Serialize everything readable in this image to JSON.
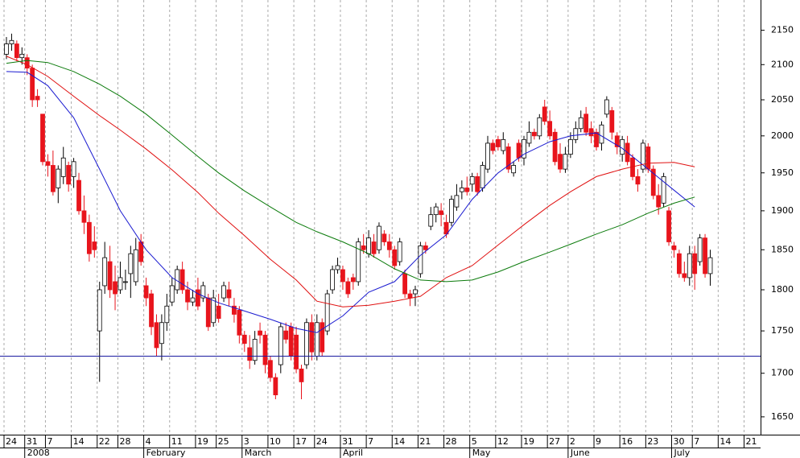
{
  "chart_data": {
    "type": "candlestick",
    "log_scale": true,
    "ylim": [
      1630,
      2195
    ],
    "yticks": [
      1650,
      1700,
      1750,
      1800,
      1850,
      1900,
      1950,
      2000,
      2050,
      2100,
      2150
    ],
    "vertical_grid": true,
    "up_color": "#ffffff",
    "down_color": "#e8141c",
    "reference_line": 1720,
    "reference_color": "#1a1aa0",
    "categories": [
      "24",
      "31",
      "7",
      "14",
      "22",
      "28",
      "4",
      "11",
      "19",
      "25",
      "3",
      "10",
      "17",
      "24",
      "31",
      "7",
      "14",
      "21",
      "28",
      "5",
      "12",
      "19",
      "27",
      "2",
      "9",
      "16",
      "23",
      "30",
      "7",
      "14",
      "21"
    ],
    "months": [
      null,
      "2008",
      null,
      null,
      null,
      null,
      "February",
      null,
      null,
      null,
      "March",
      null,
      null,
      null,
      "April",
      null,
      null,
      null,
      null,
      "May",
      null,
      null,
      null,
      "June",
      null,
      null,
      null,
      "July",
      null,
      null,
      null
    ],
    "candles": [
      [
        [
          2115,
          2130,
          2140,
          2108
        ],
        [
          2130,
          2135,
          2145,
          2120
        ],
        [
          2130,
          2110,
          2135,
          2105
        ],
        [
          2110,
          2115,
          2125,
          2100
        ]
      ],
      [
        [
          2110,
          2095,
          2115,
          2085
        ],
        [
          2095,
          2050,
          2100,
          2040
        ],
        [
          2055,
          2050,
          2065,
          2040
        ],
        [
          2030,
          1965,
          2030,
          1960
        ]
      ],
      [
        [
          1965,
          1960,
          1975,
          1945
        ],
        [
          1960,
          1925,
          1980,
          1920
        ],
        [
          1930,
          1955,
          1960,
          1910
        ],
        [
          1945,
          1970,
          1985,
          1935
        ],
        [
          1960,
          1935,
          1965,
          1925
        ]
      ],
      [
        [
          1945,
          1965,
          1970,
          1930
        ],
        [
          1940,
          1900,
          1950,
          1895
        ],
        [
          1900,
          1885,
          1920,
          1870
        ],
        [
          1885,
          1845,
          1895,
          1835
        ],
        [
          1860,
          1850,
          1880,
          1840
        ]
      ],
      [
        [
          1750,
          1800,
          1810,
          1690
        ],
        [
          1805,
          1840,
          1860,
          1795
        ],
        [
          1835,
          1800,
          1855,
          1790
        ],
        [
          1810,
          1795,
          1830,
          1775
        ]
      ],
      [
        [
          1800,
          1815,
          1835,
          1795
        ],
        [
          1810,
          1810,
          1825,
          1800
        ],
        [
          1820,
          1845,
          1855,
          1790
        ],
        [
          1810,
          1850,
          1865,
          1805
        ],
        [
          1860,
          1835,
          1870,
          1830
        ]
      ],
      [
        [
          1805,
          1790,
          1815,
          1780
        ],
        [
          1795,
          1755,
          1800,
          1745
        ],
        [
          1760,
          1730,
          1770,
          1720
        ],
        [
          1735,
          1760,
          1770,
          1715
        ],
        [
          1760,
          1780,
          1795,
          1750
        ]
      ],
      [
        [
          1785,
          1805,
          1815,
          1780
        ],
        [
          1800,
          1825,
          1830,
          1795
        ],
        [
          1825,
          1800,
          1835,
          1795
        ],
        [
          1800,
          1785,
          1810,
          1775
        ],
        [
          1785,
          1790,
          1800,
          1780
        ]
      ],
      [
        [
          1800,
          1780,
          1815,
          1775
        ],
        [
          1790,
          1805,
          1810,
          1785
        ],
        [
          1790,
          1755,
          1795,
          1750
        ],
        [
          1760,
          1790,
          1800,
          1755
        ]
      ],
      [
        [
          1780,
          1765,
          1795,
          1760
        ],
        [
          1790,
          1805,
          1810,
          1785
        ],
        [
          1800,
          1790,
          1810,
          1780
        ],
        [
          1780,
          1770,
          1790,
          1760
        ],
        [
          1775,
          1745,
          1780,
          1735
        ]
      ],
      [
        [
          1745,
          1735,
          1750,
          1725
        ],
        [
          1730,
          1715,
          1745,
          1705
        ],
        [
          1715,
          1740,
          1750,
          1710
        ],
        [
          1750,
          1745,
          1760,
          1735
        ],
        [
          1745,
          1710,
          1750,
          1700
        ]
      ],
      [
        [
          1715,
          1695,
          1720,
          1690
        ],
        [
          1695,
          1675,
          1700,
          1670
        ],
        [
          1710,
          1755,
          1760,
          1700
        ],
        [
          1750,
          1740,
          1760,
          1735
        ],
        [
          1755,
          1720,
          1760,
          1715
        ]
      ],
      [
        [
          1745,
          1705,
          1755,
          1700
        ],
        [
          1705,
          1690,
          1710,
          1670
        ],
        [
          1710,
          1760,
          1765,
          1705
        ],
        [
          1760,
          1725,
          1770,
          1715
        ]
      ],
      [
        [
          1720,
          1760,
          1770,
          1715
        ],
        [
          1760,
          1725,
          1765,
          1720
        ],
        [
          1750,
          1795,
          1800,
          1745
        ],
        [
          1800,
          1825,
          1830,
          1795
        ],
        [
          1825,
          1830,
          1840,
          1820
        ]
      ],
      [
        [
          1825,
          1810,
          1830,
          1800
        ],
        [
          1810,
          1795,
          1815,
          1790
        ],
        [
          1815,
          1810,
          1820,
          1800
        ],
        [
          1810,
          1860,
          1865,
          1805
        ],
        [
          1855,
          1850,
          1870,
          1845
        ]
      ],
      [
        [
          1845,
          1865,
          1875,
          1840
        ],
        [
          1860,
          1845,
          1870,
          1840
        ],
        [
          1850,
          1880,
          1885,
          1845
        ],
        [
          1870,
          1860,
          1875,
          1855
        ],
        [
          1860,
          1850,
          1870,
          1840
        ]
      ],
      [
        [
          1850,
          1830,
          1855,
          1825
        ],
        [
          1835,
          1860,
          1865,
          1830
        ],
        [
          1820,
          1795,
          1825,
          1790
        ],
        [
          1795,
          1790,
          1800,
          1780
        ],
        [
          1795,
          1800,
          1805,
          1780
        ]
      ],
      [
        [
          1820,
          1855,
          1860,
          1815
        ],
        [
          1855,
          1850,
          1860,
          1845
        ],
        [
          1880,
          1895,
          1905,
          1875
        ],
        [
          1895,
          1905,
          1910,
          1885
        ],
        [
          1900,
          1895,
          1910,
          1880
        ]
      ],
      [
        [
          1885,
          1870,
          1895,
          1865
        ],
        [
          1885,
          1915,
          1920,
          1880
        ],
        [
          1905,
          1920,
          1935,
          1900
        ],
        [
          1925,
          1930,
          1940,
          1915
        ],
        [
          1930,
          1925,
          1945,
          1920
        ]
      ],
      [
        [
          1935,
          1945,
          1950,
          1925
        ],
        [
          1945,
          1925,
          1950,
          1920
        ],
        [
          1930,
          1960,
          1965,
          1925
        ],
        [
          1955,
          1990,
          2000,
          1950
        ],
        [
          1990,
          1980,
          1995,
          1975
        ]
      ],
      [
        [
          1995,
          1985,
          2000,
          1980
        ],
        [
          1980,
          1995,
          2005,
          1975
        ],
        [
          1985,
          1955,
          1990,
          1950
        ],
        [
          1950,
          1960,
          1965,
          1945
        ],
        [
          1990,
          1970,
          1995,
          1965
        ]
      ],
      [
        [
          1970,
          1995,
          2000,
          1960
        ],
        [
          1990,
          2005,
          2020,
          1985
        ],
        [
          2005,
          2000,
          2010,
          1995
        ],
        [
          2000,
          2025,
          2030,
          1995
        ],
        [
          2040,
          2020,
          2050,
          2015
        ]
      ],
      [
        [
          2020,
          2000,
          2035,
          1995
        ],
        [
          2005,
          1965,
          2010,
          1960
        ],
        [
          1975,
          1955,
          1990,
          1950
        ],
        [
          1955,
          1975,
          1985,
          1950
        ]
      ],
      [
        [
          1975,
          1995,
          2005,
          1970
        ],
        [
          1995,
          2010,
          2020,
          1990
        ],
        [
          2010,
          2025,
          2035,
          2005
        ],
        [
          2030,
          2005,
          2040,
          2000
        ],
        [
          2010,
          2000,
          2020,
          1990
        ]
      ],
      [
        [
          2005,
          1985,
          2010,
          1980
        ],
        [
          1990,
          2015,
          2020,
          1980
        ],
        [
          2030,
          2050,
          2055,
          2025
        ],
        [
          2035,
          2005,
          2040,
          1995
        ],
        [
          2000,
          1985,
          2005,
          1975
        ]
      ],
      [
        [
          1975,
          1995,
          2000,
          1965
        ],
        [
          1990,
          1965,
          2000,
          1960
        ],
        [
          1970,
          1945,
          1975,
          1940
        ],
        [
          1945,
          1935,
          1955,
          1925
        ],
        [
          1955,
          1990,
          1995,
          1950
        ]
      ],
      [
        [
          1985,
          1955,
          1990,
          1950
        ],
        [
          1955,
          1920,
          1960,
          1915
        ],
        [
          1920,
          1905,
          1935,
          1895
        ],
        [
          1910,
          1945,
          1950,
          1905
        ],
        [
          1900,
          1860,
          1905,
          1855
        ]
      ],
      [
        [
          1855,
          1850,
          1860,
          1840
        ],
        [
          1845,
          1820,
          1850,
          1815
        ],
        [
          1820,
          1815,
          1835,
          1810
        ],
        [
          1815,
          1845,
          1855,
          1805
        ]
      ],
      [
        [
          1845,
          1820,
          1855,
          1800
        ],
        [
          1835,
          1865,
          1870,
          1830
        ],
        [
          1865,
          1820,
          1870,
          1815
        ],
        [
          1820,
          1840,
          1850,
          1805
        ],
        null
      ],
      [
        null,
        null,
        null,
        null,
        null
      ],
      [
        null,
        null,
        null,
        null,
        null
      ]
    ],
    "series": [
      {
        "color": "#1a1ad0",
        "values": [
          2090,
          2089,
          2070,
          2025,
          1955,
          1900,
          1850,
          1815,
          1795,
          1784,
          1774,
          1764,
          1753,
          1748,
          1768,
          1797,
          1810,
          1843,
          1869,
          1915,
          1950,
          1975,
          1992,
          2000,
          2004,
          1983,
          1955,
          1927,
          1905,
          null,
          null
        ]
      },
      {
        "color": "#e01010",
        "values": [
          2112,
          2100,
          2083,
          2055,
          2028,
          2008,
          1982,
          1954,
          1924,
          1897,
          1868,
          1838,
          1812,
          1786,
          1779,
          1781,
          1786,
          1792,
          1815,
          1830,
          1856,
          1882,
          1907,
          1925,
          1945,
          1955,
          1963,
          1964,
          1958,
          null,
          null
        ]
      },
      {
        "color": "#0a7a0a",
        "values": [
          2102,
          2106,
          2103,
          2090,
          2072,
          2055,
          2030,
          2001,
          1972,
          1950,
          1926,
          1905,
          1885,
          1873,
          1860,
          1845,
          1826,
          1812,
          1810,
          1812,
          1822,
          1835,
          1847,
          1857,
          1870,
          1882,
          1897,
          1910,
          1918,
          null,
          null
        ]
      }
    ]
  }
}
